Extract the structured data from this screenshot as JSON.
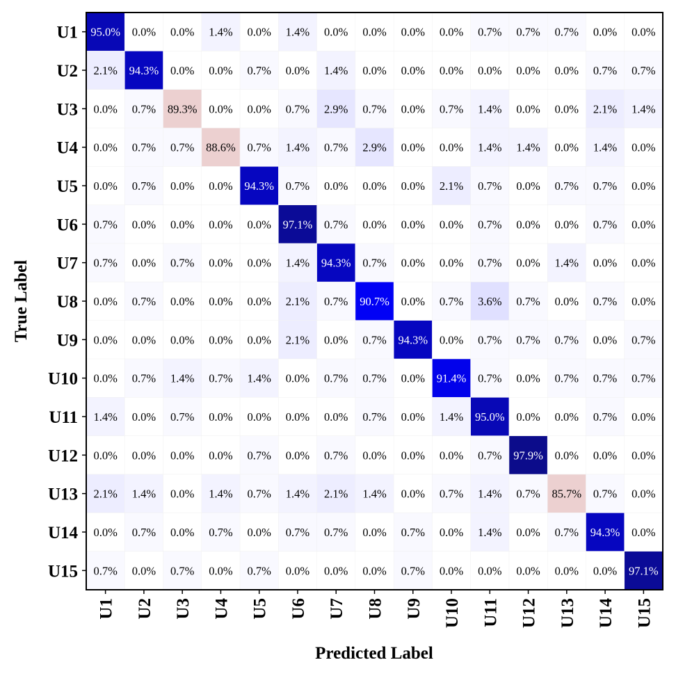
{
  "chart_data": {
    "type": "heatmap",
    "title": "",
    "xlabel": "Predicted Label",
    "ylabel": "True Label",
    "x_categories": [
      "U1",
      "U2",
      "U3",
      "U4",
      "U5",
      "U6",
      "U7",
      "U8",
      "U9",
      "U10",
      "U11",
      "U12",
      "U13",
      "U14",
      "U15"
    ],
    "y_categories": [
      "U1",
      "U2",
      "U3",
      "U4",
      "U5",
      "U6",
      "U7",
      "U8",
      "U9",
      "U10",
      "U11",
      "U12",
      "U13",
      "U14",
      "U15"
    ],
    "value_format": "percent, 1 decimal",
    "values": [
      [
        95.0,
        0.0,
        0.0,
        1.4,
        0.0,
        1.4,
        0.0,
        0.0,
        0.0,
        0.0,
        0.7,
        0.7,
        0.7,
        0.0,
        0.0
      ],
      [
        2.1,
        94.3,
        0.0,
        0.0,
        0.7,
        0.0,
        1.4,
        0.0,
        0.0,
        0.0,
        0.0,
        0.0,
        0.0,
        0.7,
        0.7
      ],
      [
        0.0,
        0.7,
        89.3,
        0.0,
        0.0,
        0.7,
        2.9,
        0.7,
        0.0,
        0.7,
        1.4,
        0.0,
        0.0,
        2.1,
        1.4
      ],
      [
        0.0,
        0.7,
        0.7,
        88.6,
        0.7,
        1.4,
        0.7,
        2.9,
        0.0,
        0.0,
        1.4,
        1.4,
        0.0,
        1.4,
        0.0
      ],
      [
        0.0,
        0.7,
        0.0,
        0.0,
        94.3,
        0.7,
        0.0,
        0.0,
        0.0,
        2.1,
        0.7,
        0.0,
        0.7,
        0.7,
        0.0
      ],
      [
        0.7,
        0.0,
        0.0,
        0.0,
        0.0,
        97.1,
        0.7,
        0.0,
        0.0,
        0.0,
        0.7,
        0.0,
        0.0,
        0.7,
        0.0
      ],
      [
        0.7,
        0.0,
        0.7,
        0.0,
        0.0,
        1.4,
        94.3,
        0.7,
        0.0,
        0.0,
        0.7,
        0.0,
        1.4,
        0.0,
        0.0
      ],
      [
        0.0,
        0.7,
        0.0,
        0.0,
        0.0,
        2.1,
        0.7,
        90.7,
        0.0,
        0.7,
        3.6,
        0.7,
        0.0,
        0.7,
        0.0
      ],
      [
        0.0,
        0.0,
        0.0,
        0.0,
        0.0,
        2.1,
        0.0,
        0.7,
        94.3,
        0.0,
        0.7,
        0.7,
        0.7,
        0.0,
        0.7
      ],
      [
        0.0,
        0.7,
        1.4,
        0.7,
        1.4,
        0.0,
        0.7,
        0.7,
        0.0,
        91.4,
        0.7,
        0.0,
        0.7,
        0.7,
        0.7
      ],
      [
        1.4,
        0.0,
        0.7,
        0.0,
        0.0,
        0.0,
        0.0,
        0.7,
        0.0,
        1.4,
        95.0,
        0.0,
        0.0,
        0.7,
        0.0
      ],
      [
        0.0,
        0.0,
        0.0,
        0.0,
        0.7,
        0.0,
        0.7,
        0.0,
        0.0,
        0.0,
        0.7,
        97.9,
        0.0,
        0.0,
        0.0
      ],
      [
        2.1,
        1.4,
        0.0,
        1.4,
        0.7,
        1.4,
        2.1,
        1.4,
        0.0,
        0.7,
        1.4,
        0.7,
        85.7,
        0.7,
        0.0
      ],
      [
        0.0,
        0.7,
        0.0,
        0.7,
        0.0,
        0.7,
        0.7,
        0.0,
        0.7,
        0.0,
        1.4,
        0.0,
        0.7,
        94.3,
        0.0
      ],
      [
        0.7,
        0.0,
        0.7,
        0.0,
        0.7,
        0.0,
        0.0,
        0.0,
        0.7,
        0.0,
        0.0,
        0.0,
        0.0,
        0.0,
        97.1
      ]
    ],
    "colors": {
      "low": "#ffffff",
      "blue_mid": "#0000ff",
      "blue_high": "#0c0c8a",
      "salmon": "#ecd0d0",
      "text_dark": "#000000",
      "text_light": "#ffffff"
    },
    "grid": true,
    "legend": "none"
  }
}
